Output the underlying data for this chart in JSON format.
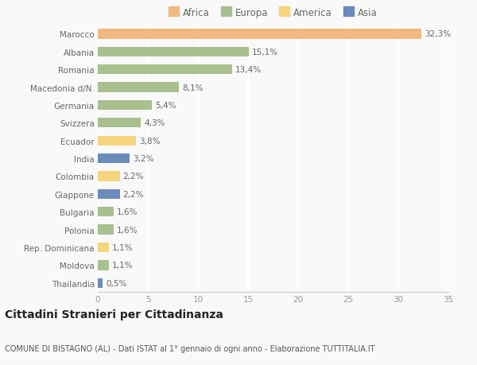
{
  "categories": [
    "Marocco",
    "Albania",
    "Romania",
    "Macedonia d/N.",
    "Germania",
    "Svizzera",
    "Ecuador",
    "India",
    "Colombia",
    "Giappone",
    "Bulgaria",
    "Polonia",
    "Rep. Dominicana",
    "Moldova",
    "Thailandia"
  ],
  "values": [
    32.3,
    15.1,
    13.4,
    8.1,
    5.4,
    4.3,
    3.8,
    3.2,
    2.2,
    2.2,
    1.6,
    1.6,
    1.1,
    1.1,
    0.5
  ],
  "labels": [
    "32,3%",
    "15,1%",
    "13,4%",
    "8,1%",
    "5,4%",
    "4,3%",
    "3,8%",
    "3,2%",
    "2,2%",
    "2,2%",
    "1,6%",
    "1,6%",
    "1,1%",
    "1,1%",
    "0,5%"
  ],
  "colors": [
    "#f0b982",
    "#a8bf8e",
    "#a8bf8e",
    "#a8bf8e",
    "#a8bf8e",
    "#a8bf8e",
    "#f5d57e",
    "#6b8cba",
    "#f5d57e",
    "#6b8cba",
    "#a8bf8e",
    "#a8bf8e",
    "#f5d57e",
    "#a8bf8e",
    "#6b8cba"
  ],
  "legend_labels": [
    "Africa",
    "Europa",
    "America",
    "Asia"
  ],
  "legend_colors": [
    "#f0b982",
    "#a8bf8e",
    "#f5d57e",
    "#6b8cba"
  ],
  "title": "Cittadini Stranieri per Cittadinanza",
  "subtitle": "COMUNE DI BISTAGNO (AL) - Dati ISTAT al 1° gennaio di ogni anno - Elaborazione TUTTITALIA.IT",
  "xlim": [
    0,
    35
  ],
  "xticks": [
    0,
    5,
    10,
    15,
    20,
    25,
    30,
    35
  ],
  "background_color": "#f9f9f9",
  "grid_color": "#ffffff",
  "bar_height": 0.55,
  "label_fontsize": 7.5,
  "tick_fontsize": 7.5,
  "title_fontsize": 10,
  "subtitle_fontsize": 7.0
}
